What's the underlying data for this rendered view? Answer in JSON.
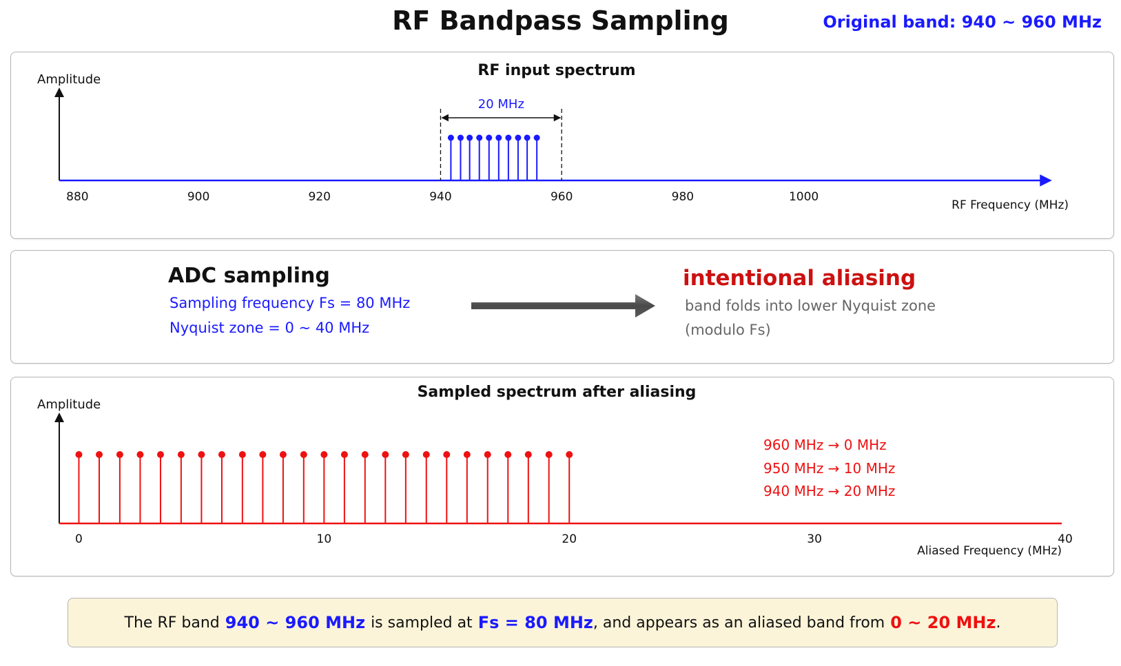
{
  "header": {
    "title": "RF Bandpass Sampling",
    "original_band": "Original band: 940 ~ 960 MHz"
  },
  "rf_panel": {
    "title": "RF input spectrum",
    "y_label": "Amplitude",
    "x_label": "RF Frequency (MHz)",
    "bandwidth_label": "20 MHz",
    "x_ticks": [
      "880",
      "900",
      "920",
      "940",
      "960",
      "980",
      "1000"
    ]
  },
  "adc_panel": {
    "heading": "ADC sampling",
    "lines": [
      "Sampling frequency Fs = 80 MHz",
      "Nyquist zone = 0 ~ 40 MHz"
    ],
    "result_heading": "intentional aliasing",
    "result_lines": [
      "band folds into lower Nyquist zone",
      "(modulo Fs)"
    ]
  },
  "sampled_panel": {
    "title": "Sampled spectrum after aliasing",
    "y_label": "Amplitude",
    "x_label": "Aliased Frequency (MHz)",
    "x_ticks": [
      "0",
      "10",
      "20",
      "30",
      "40"
    ],
    "mappings": [
      "960 MHz → 0 MHz",
      "950 MHz → 10 MHz",
      "940 MHz → 20 MHz"
    ]
  },
  "summary": {
    "prefix": "The RF band",
    "rf_band": "940 ~ 960 MHz",
    "middle": "is sampled at",
    "fs": "Fs = 80 MHz",
    "suffix": ", and appears as an aliased band from",
    "aliased_band": "0 ~ 20 MHz",
    "end": "."
  },
  "colors": {
    "rf_blue": "#1a1aff",
    "alias_red": "#ee1111",
    "summary_bg": "#fbf4d9"
  },
  "chart_data": [
    {
      "type": "stem",
      "title": "RF input spectrum",
      "xlabel": "RF Frequency (MHz)",
      "ylabel": "Amplitude",
      "xlim": [
        877,
        1040
      ],
      "x_ticks": [
        880,
        900,
        920,
        940,
        960,
        980,
        1000
      ],
      "x": [
        941.7,
        943.3,
        944.8,
        946.4,
        948.0,
        949.6,
        951.2,
        952.8,
        954.3,
        955.9
      ],
      "values": [
        1,
        1,
        1,
        1,
        1,
        1,
        1,
        1,
        1,
        1
      ],
      "band_marker": {
        "from": 940,
        "to": 960,
        "label": "20 MHz"
      }
    },
    {
      "type": "stem",
      "title": "Sampled spectrum after aliasing",
      "xlabel": "Aliased Frequency (MHz)",
      "ylabel": "Amplitude",
      "xlim": [
        -0.8,
        40
      ],
      "x_ticks": [
        0,
        10,
        20,
        30,
        40
      ],
      "x": [
        0,
        0.83,
        1.67,
        2.5,
        3.33,
        4.17,
        5,
        5.83,
        6.67,
        7.5,
        8.33,
        9.17,
        10,
        10.83,
        11.67,
        12.5,
        13.33,
        14.17,
        15,
        15.83,
        16.67,
        17.5,
        18.33,
        19.17,
        20
      ],
      "values": [
        1,
        1,
        1,
        1,
        1,
        1,
        1,
        1,
        1,
        1,
        1,
        1,
        1,
        1,
        1,
        1,
        1,
        1,
        1,
        1,
        1,
        1,
        1,
        1,
        1
      ]
    }
  ]
}
